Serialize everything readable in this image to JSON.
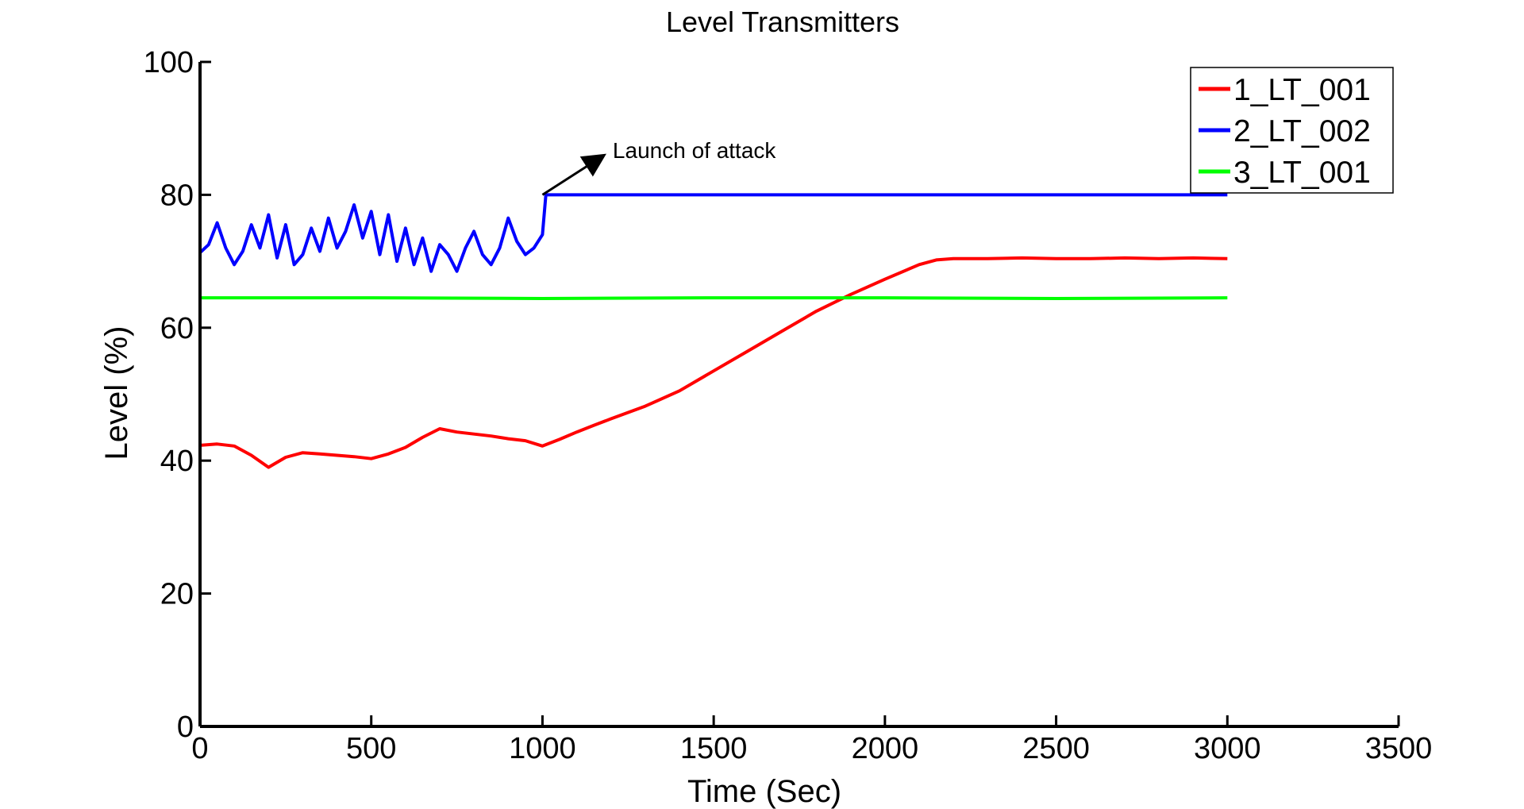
{
  "chart_data": {
    "type": "line",
    "title": "Level Transmitters",
    "xlabel": "Time (Sec)",
    "ylabel": "Level (%)",
    "xlim": [
      0,
      3500
    ],
    "ylim": [
      0,
      100
    ],
    "xticks": [
      0,
      500,
      1000,
      1500,
      2000,
      2500,
      3000,
      3500
    ],
    "yticks": [
      0,
      20,
      40,
      60,
      80,
      100
    ],
    "xtick_labels": [
      "0",
      "500",
      "1000",
      "1500",
      "2000",
      "2500",
      "3000",
      "3500"
    ],
    "ytick_labels": [
      "0",
      "20",
      "40",
      "60",
      "80",
      "100"
    ],
    "grid": false,
    "legend_position": "top-right",
    "series": [
      {
        "name": "1_LT_001",
        "color": "#ff0000",
        "x": [
          0,
          50,
          100,
          150,
          200,
          250,
          300,
          350,
          400,
          450,
          500,
          550,
          600,
          650,
          700,
          750,
          800,
          850,
          900,
          950,
          1000,
          1050,
          1100,
          1150,
          1200,
          1300,
          1400,
          1500,
          1600,
          1700,
          1800,
          1900,
          2000,
          2100,
          2150,
          2200,
          2300,
          2400,
          2500,
          2600,
          2700,
          2800,
          2900,
          3000
        ],
        "y": [
          42.3,
          42.5,
          42.2,
          40.8,
          39.0,
          40.5,
          41.2,
          41.0,
          40.8,
          40.6,
          40.3,
          41.0,
          42.0,
          43.5,
          44.8,
          44.3,
          44.0,
          43.7,
          43.3,
          43.0,
          42.2,
          43.2,
          44.3,
          45.3,
          46.3,
          48.2,
          50.5,
          53.5,
          56.5,
          59.5,
          62.5,
          65.0,
          67.3,
          69.5,
          70.2,
          70.4,
          70.4,
          70.5,
          70.4,
          70.4,
          70.5,
          70.4,
          70.5,
          70.4
        ]
      },
      {
        "name": "2_LT_002",
        "color": "#0000ff",
        "x": [
          0,
          25,
          50,
          75,
          100,
          125,
          150,
          175,
          200,
          225,
          250,
          275,
          300,
          325,
          350,
          375,
          400,
          425,
          450,
          475,
          500,
          525,
          550,
          575,
          600,
          625,
          650,
          675,
          700,
          725,
          750,
          775,
          800,
          825,
          850,
          875,
          900,
          925,
          950,
          975,
          1000,
          1010,
          1050,
          1500,
          2000,
          2500,
          3000
        ],
        "y": [
          71.3,
          72.5,
          75.8,
          72.0,
          69.5,
          71.5,
          75.5,
          72.0,
          77.0,
          70.5,
          75.5,
          69.5,
          71.0,
          75.0,
          71.5,
          76.5,
          72.0,
          74.5,
          78.5,
          73.5,
          77.5,
          71.0,
          77.0,
          70.0,
          75.0,
          69.5,
          73.5,
          68.5,
          72.5,
          71.0,
          68.5,
          72.0,
          74.5,
          71.0,
          69.5,
          72.0,
          76.5,
          73.0,
          71.0,
          72.0,
          74.0,
          80.0,
          80.0,
          80.0,
          80.0,
          80.0,
          80.0
        ]
      },
      {
        "name": "3_LT_001",
        "color": "#00ff00",
        "x": [
          0,
          500,
          1000,
          1500,
          2000,
          2500,
          3000
        ],
        "y": [
          64.5,
          64.5,
          64.4,
          64.5,
          64.5,
          64.4,
          64.5
        ]
      }
    ],
    "annotations": [
      {
        "text": "Launch of attack",
        "arrow_from": [
          1000,
          80.0
        ],
        "arrow_to": [
          1175,
          85.8
        ]
      }
    ]
  }
}
